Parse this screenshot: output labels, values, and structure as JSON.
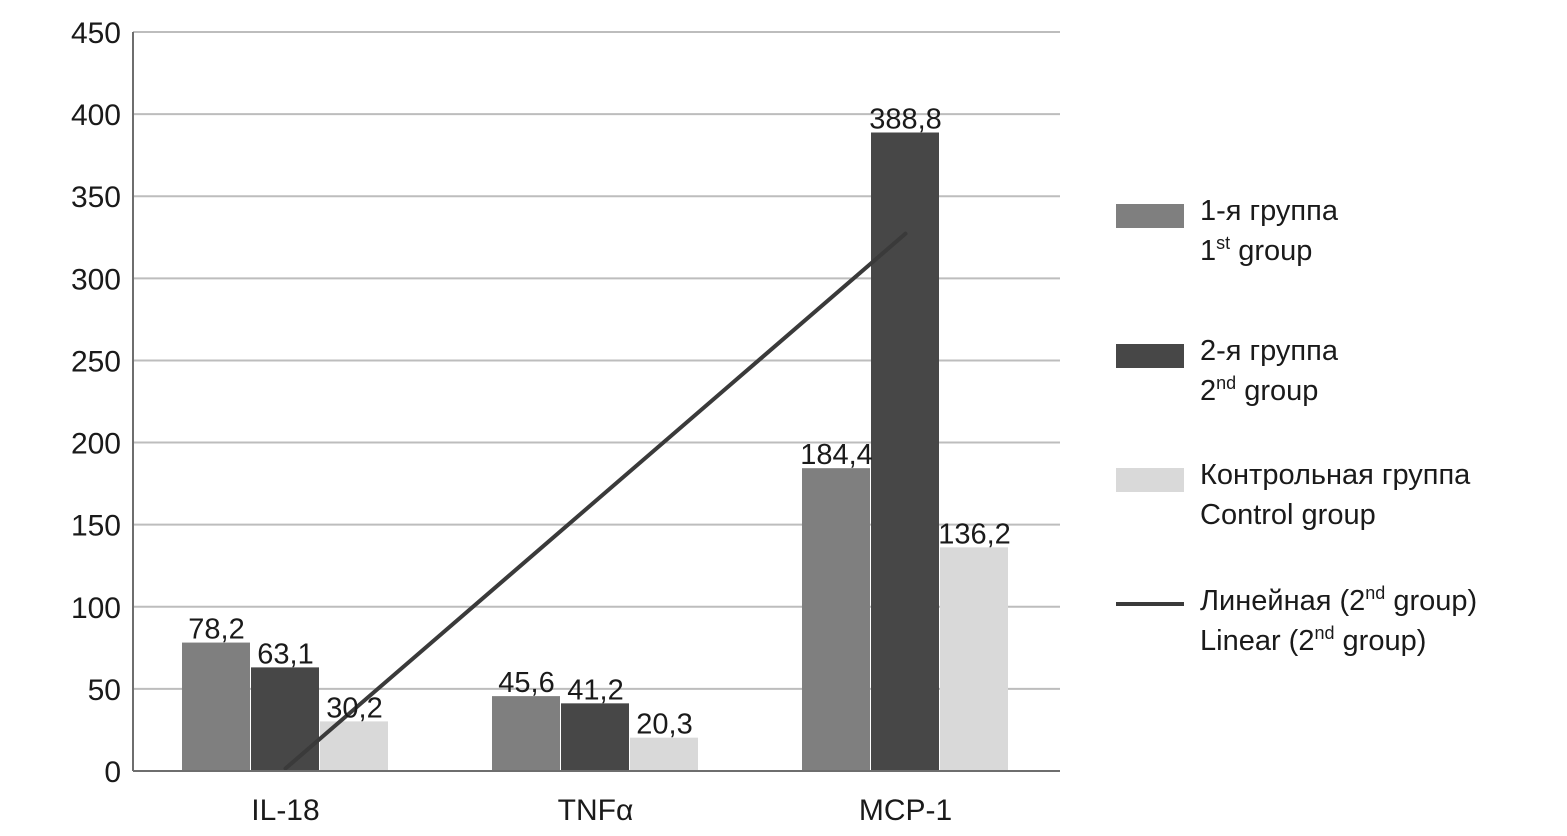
{
  "chart_data": {
    "type": "bar",
    "categories": [
      "IL-18",
      "TNFα",
      "MCP-1"
    ],
    "series": [
      {
        "name": "1-я группа / 1st group",
        "values": [
          78.2,
          45.6,
          184.4
        ],
        "labels": [
          "78,2",
          "45,6",
          "184,4"
        ],
        "color": "#7f7f7f"
      },
      {
        "name": "2-я группа / 2nd group",
        "values": [
          63.1,
          41.2,
          388.8
        ],
        "labels": [
          "63,1",
          "41,2",
          "388,8"
        ],
        "color": "#474747"
      },
      {
        "name": "Контрольная группа / Control group",
        "values": [
          30.2,
          20.3,
          136.2
        ],
        "labels": [
          "30,2",
          "20,3",
          "136,2"
        ],
        "color": "#d9d9d9"
      }
    ],
    "trendline": {
      "name": "Линейная (2nd group) / Linear (2nd group)",
      "type": "linear",
      "of_series": "2-я группа / 2nd group",
      "color": "#3a3a3a"
    },
    "ylim": [
      0,
      450
    ],
    "yticks": [
      0,
      50,
      100,
      150,
      200,
      250,
      300,
      350,
      400,
      450
    ],
    "grid": true,
    "legend_position": "right",
    "xlabel": "",
    "ylabel": "",
    "title": ""
  },
  "legend": [
    {
      "line1": "1-я группа",
      "line2_pre": "1",
      "line2_sup": "st",
      "line2_post": " group",
      "color": "#7f7f7f",
      "kind": "bar"
    },
    {
      "line1": "2-я группа",
      "line2_pre": "2",
      "line2_sup": "nd",
      "line2_post": " group",
      "color": "#474747",
      "kind": "bar"
    },
    {
      "line1": "Контрольная группа",
      "line2_pre": "Control group",
      "line2_sup": "",
      "line2_post": "",
      "color": "#d9d9d9",
      "kind": "bar"
    },
    {
      "line1_pre": "Линейная (2",
      "line1_sup": "nd",
      "line1_post": " group)",
      "line2_pre": "Linear (2",
      "line2_sup": "nd",
      "line2_post": " group)",
      "color": "#3a3a3a",
      "kind": "line"
    }
  ]
}
